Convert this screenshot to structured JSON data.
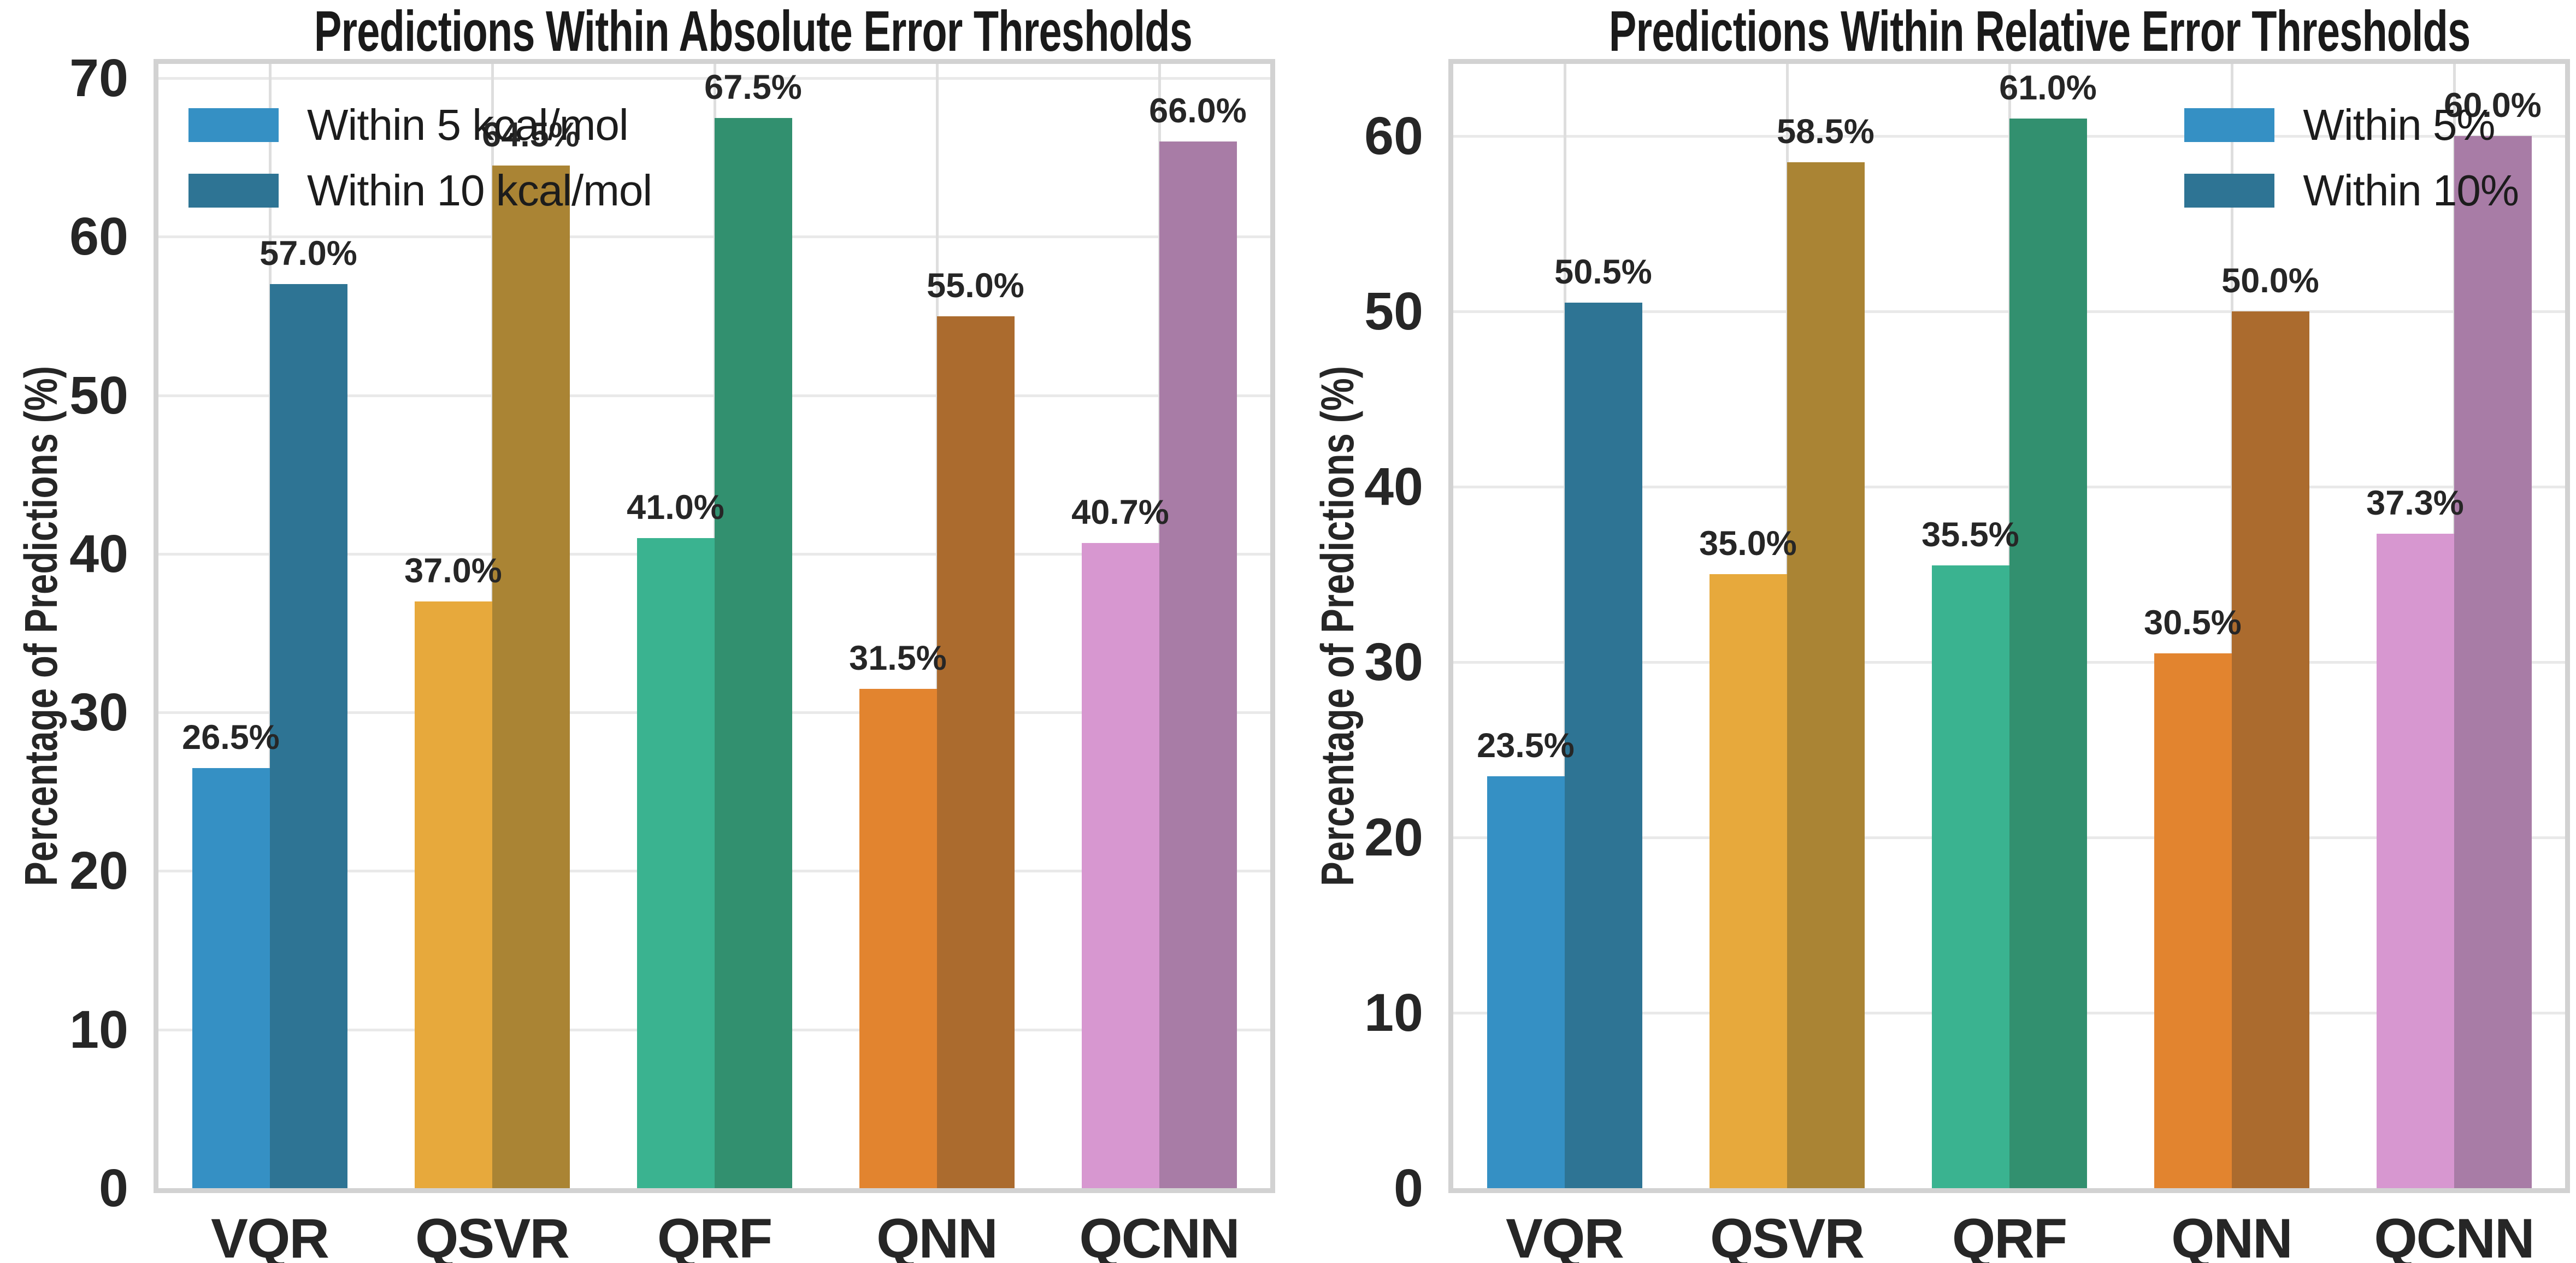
{
  "figure": {
    "background": "#ffffff",
    "text_color": "#262626",
    "grid_color": "#e9e9e9",
    "spine_color": "#d2d2d2"
  },
  "chart_data": [
    {
      "type": "bar",
      "title": "Predictions Within Absolute Error Thresholds",
      "ylabel": "Percentage of Predictions (%)",
      "xlabel": "",
      "categories": [
        "VQR",
        "QSVR",
        "QRF",
        "QNN",
        "QCNN"
      ],
      "series": [
        {
          "name": "Within 5 kcal/mol",
          "values": [
            26.5,
            37.0,
            41.0,
            31.5,
            40.7
          ],
          "value_labels": [
            "26.5%",
            "37.0%",
            "41.0%",
            "31.5%",
            "40.7%"
          ]
        },
        {
          "name": "Within 10 kcal/mol",
          "values": [
            57.0,
            64.5,
            67.5,
            55.0,
            66.0
          ],
          "value_labels": [
            "57.0%",
            "64.5%",
            "67.5%",
            "55.0%",
            "66.0%"
          ]
        }
      ],
      "category_colors_light": [
        "#3590c4",
        "#e7a93c",
        "#3ab390",
        "#e2842f",
        "#d797d0"
      ],
      "category_colors_dark": [
        "#2e7494",
        "#aa8434",
        "#32906f",
        "#ab6b2e",
        "#a87ca6"
      ],
      "yticks": [
        0,
        10,
        20,
        30,
        40,
        50,
        60,
        70
      ],
      "ytick_labels": [
        "0",
        "10",
        "20",
        "30",
        "40",
        "50",
        "60",
        "70"
      ],
      "ylim": [
        0,
        70.9
      ],
      "grid": true,
      "legend": {
        "position": "upper-left",
        "entries": [
          {
            "label": "Within 5 kcal/mol",
            "color": "#3590c4"
          },
          {
            "label": "Within 10 kcal/mol",
            "color": "#2e7494"
          }
        ]
      }
    },
    {
      "type": "bar",
      "title": "Predictions Within Relative Error Thresholds",
      "ylabel": "Percentage of Predictions (%)",
      "xlabel": "",
      "categories": [
        "VQR",
        "QSVR",
        "QRF",
        "QNN",
        "QCNN"
      ],
      "series": [
        {
          "name": "Within 5%",
          "values": [
            23.5,
            35.0,
            35.5,
            30.5,
            37.3
          ],
          "value_labels": [
            "23.5%",
            "35.0%",
            "35.5%",
            "30.5%",
            "37.3%"
          ]
        },
        {
          "name": "Within 10%",
          "values": [
            50.5,
            58.5,
            61.0,
            50.0,
            60.0
          ],
          "value_labels": [
            "50.5%",
            "58.5%",
            "61.0%",
            "50.0%",
            "60.0%"
          ]
        }
      ],
      "category_colors_light": [
        "#3590c4",
        "#e7a93c",
        "#3ab390",
        "#e2842f",
        "#d797d0"
      ],
      "category_colors_dark": [
        "#2e7494",
        "#aa8434",
        "#32906f",
        "#ab6b2e",
        "#a87ca6"
      ],
      "yticks": [
        0,
        10,
        20,
        30,
        40,
        50,
        60
      ],
      "ytick_labels": [
        "0",
        "10",
        "20",
        "30",
        "40",
        "50",
        "60"
      ],
      "ylim": [
        0,
        64.1
      ],
      "grid": true,
      "legend": {
        "position": "upper-right",
        "entries": [
          {
            "label": "Within 5%",
            "color": "#3590c4"
          },
          {
            "label": "Within 10%",
            "color": "#2e7494"
          }
        ]
      }
    }
  ]
}
